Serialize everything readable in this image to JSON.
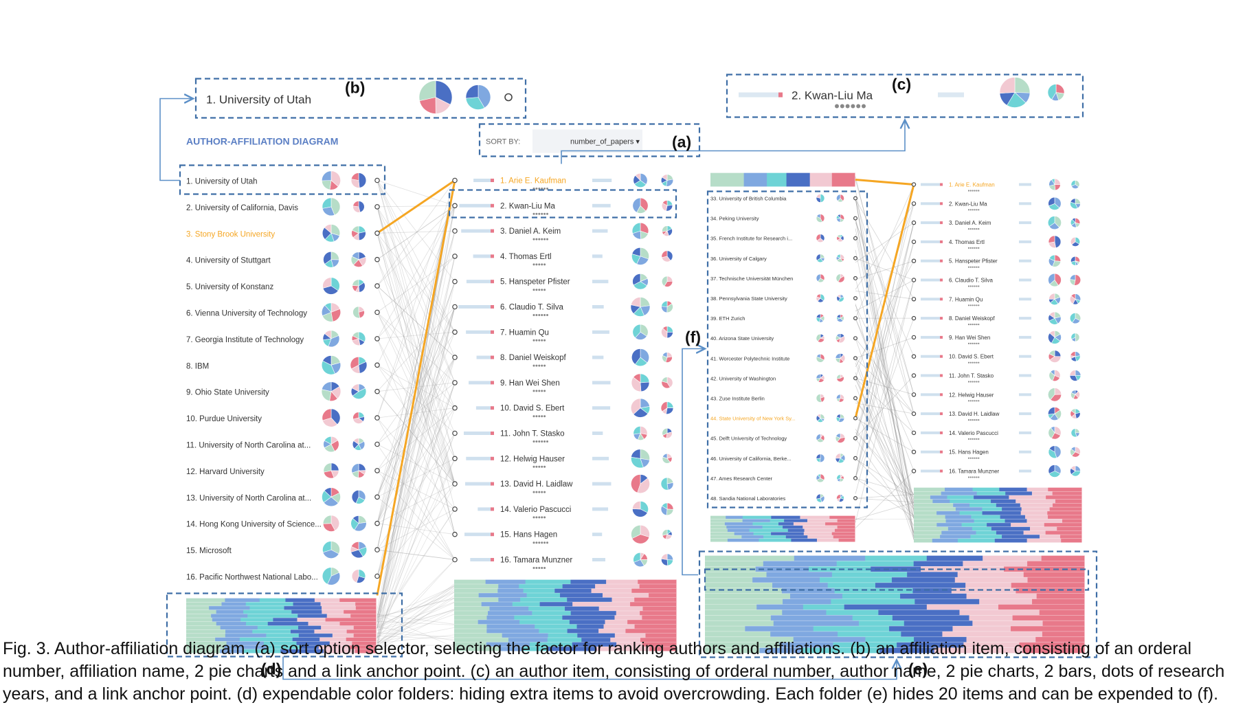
{
  "figure": {
    "diagram_title": "AUTHOR-AFFILIATION DIAGRAM",
    "sort": {
      "label": "SORT BY:",
      "value": "number_of_papers ▾"
    },
    "callouts": {
      "a": "(a)",
      "b": "(b)",
      "c": "(c)",
      "d": "(d)",
      "e": "(e)",
      "f": "(f)"
    },
    "zoom_affiliation": "1. University of Utah",
    "zoom_author": "2. Kwan-Liu Ma",
    "highlight_color": "#f5a623",
    "palette": [
      "#b6ddc8",
      "#7fa8e0",
      "#6ed3d6",
      "#4a6fc4",
      "#f2c9d2",
      "#e8798a"
    ],
    "affiliations": [
      "1. University of Utah",
      "2. University of California, Davis",
      "3. Stony Brook University",
      "4. University of Stuttgart",
      "5. University of Konstanz",
      "6. Vienna University of Technology",
      "7. Georgia Institute of Technology",
      "8. IBM",
      "9. Ohio State University",
      "10. Purdue University",
      "11. University of North Carolina at...",
      "12. Harvard University",
      "13. University of North Carolina at...",
      "14. Hong Kong University of Science...",
      "15. Microsoft",
      "16. Pacific Northwest National Labo..."
    ],
    "highlighted_affiliation": 2,
    "authors": [
      "1. Arie E. Kaufman",
      "2. Kwan-Liu Ma",
      "3. Daniel A. Keim",
      "4. Thomas Ertl",
      "5. Hanspeter Pfister",
      "6. Claudio T. Silva",
      "7. Huamin Qu",
      "8. Daniel Weiskopf",
      "9. Han Wei Shen",
      "10. David S. Ebert",
      "11. John T. Stasko",
      "12. Helwig Hauser",
      "13. David H. Laidlaw",
      "14. Valerio Pascucci",
      "15. Hans Hagen",
      "16. Tamara Munzner"
    ],
    "highlighted_author": 0,
    "expanded_affiliations": [
      "33. University of British Columbia",
      "34. Peking University",
      "35. French Institute for Research i...",
      "36. University of Calgary",
      "37. Technische Universität München",
      "38. Pennsylvania State University",
      "39. ETH Zurich",
      "40. Arizona State University",
      "41. Worcester Polytechnic Institute",
      "42. University of Washington",
      "43. Zuse Institute Berlin",
      "44. State University of New York Sy...",
      "45. Delft University of Technology",
      "46. University of California, Berke...",
      "47. Ames Research Center",
      "48. Sandia National Laboratories"
    ],
    "highlighted_expanded": 11
  },
  "caption": "Fig. 3. Author-affiliation diagram. (a) sort option selector, selecting the factor for ranking authors and affiliations. (b) an affiliation item, consisting of an orderal number, affiliation name, 2 pie charts and a link anchor point. (c) an author item, consisting of orderal number, author name, 2 pie charts, 2 bars, dots of research years, and a link anchor point. (d) expendable color folders: hiding extra items to avoid overcrowding. Each folder (e) hides 20 items and can be expended to (f)."
}
